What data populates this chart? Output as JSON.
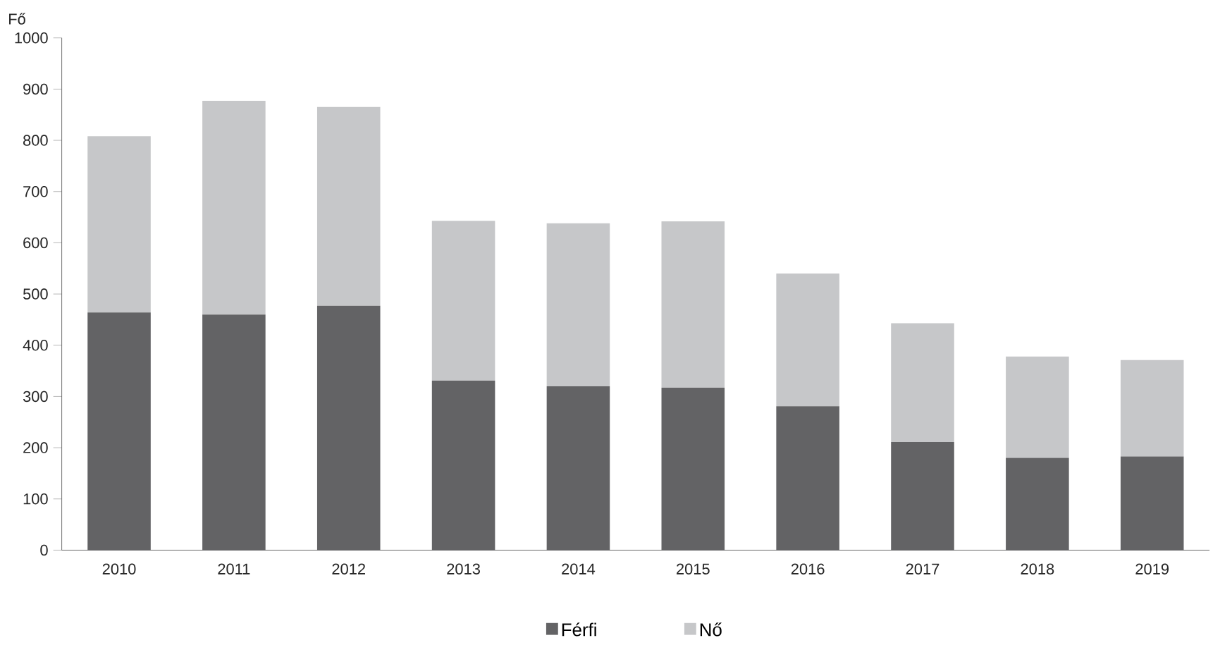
{
  "chart_data": {
    "type": "bar",
    "stacked": true,
    "ylabel": "Fő",
    "categories": [
      "2010",
      "2011",
      "2012",
      "2013",
      "2014",
      "2015",
      "2016",
      "2017",
      "2018",
      "2019"
    ],
    "series": [
      {
        "name": "Férfi",
        "color": "#636365",
        "values": [
          464,
          460,
          477,
          331,
          320,
          317,
          281,
          211,
          180,
          183
        ]
      },
      {
        "name": "Nő",
        "color": "#c6c7c9",
        "values": [
          344,
          417,
          388,
          312,
          318,
          325,
          259,
          232,
          198,
          188
        ]
      }
    ],
    "ylim": [
      0,
      1000
    ],
    "yticks": [
      0,
      100,
      200,
      300,
      400,
      500,
      600,
      700,
      800,
      900,
      1000
    ],
    "grid": false,
    "legend": "bottom"
  }
}
